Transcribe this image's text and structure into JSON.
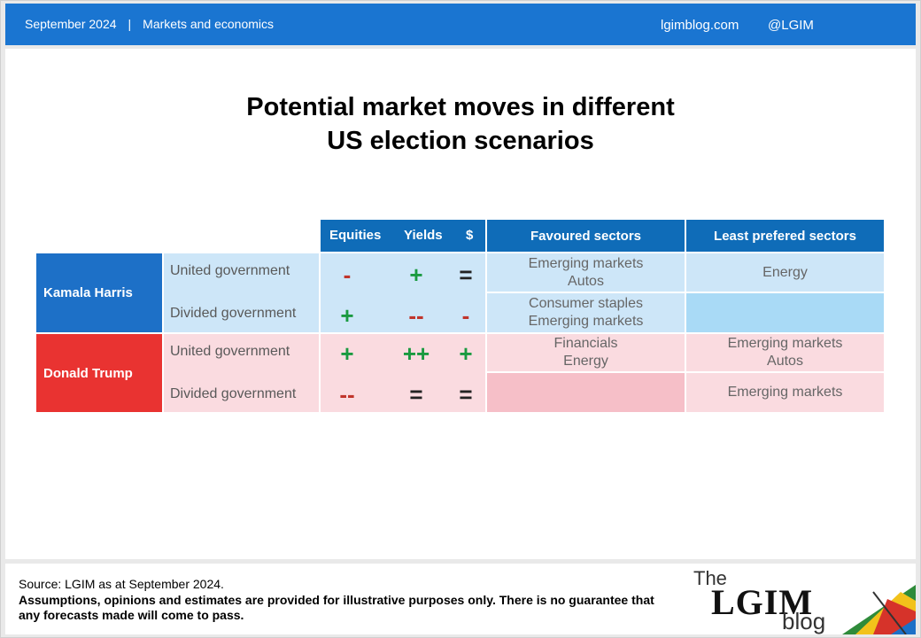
{
  "header": {
    "date": "September 2024",
    "separator": "|",
    "section": "Markets and economics",
    "site": "lgimblog.com",
    "handle": "@LGIM"
  },
  "title_line1": "Potential market moves in different",
  "title_line2": "US election scenarios",
  "table": {
    "headers": {
      "equities": "Equities",
      "yields": "Yields",
      "dollar": "$",
      "favoured": "Favoured sectors",
      "least": "Least prefered sectors"
    },
    "harris": {
      "name": "Kamala Harris",
      "united": {
        "label": "United government",
        "equities": "-",
        "yields": "+",
        "dollar": "=",
        "favoured_1": "Emerging markets",
        "favoured_2": "Autos",
        "least_1": "Energy"
      },
      "divided": {
        "label": "Divided government",
        "equities": "+",
        "yields": "--",
        "dollar": "-",
        "favoured_1": "Consumer staples",
        "favoured_2": "Emerging markets"
      }
    },
    "trump": {
      "name": "Donald Trump",
      "united": {
        "label": "United government",
        "equities": "+",
        "yields": "++",
        "dollar": "+",
        "favoured_1": "Financials",
        "favoured_2": "Energy",
        "least_1": "Emerging markets",
        "least_2": "Autos"
      },
      "divided": {
        "label": "Divided government",
        "equities": "--",
        "yields": "=",
        "dollar": "=",
        "least_1": "Emerging markets"
      }
    }
  },
  "footer": {
    "source": "Source: LGIM  as at September 2024.",
    "disclaimer": "Assumptions,  opinions and estimates are provided for illustrative purposes only. There is no guarantee that any forecasts made will come to pass.",
    "logo_the": "The",
    "logo_lgim": "LGIM",
    "logo_blog": "blog"
  },
  "colors": {
    "topbar": "#1a75d1",
    "header_blue": "#0f6cb8",
    "harris_blue": "#1d70c7",
    "trump_red": "#e93331",
    "positive_green": "#1a9a40",
    "negative_red": "#c0352c"
  },
  "icons": [
    "umbrella-logo-icon"
  ]
}
